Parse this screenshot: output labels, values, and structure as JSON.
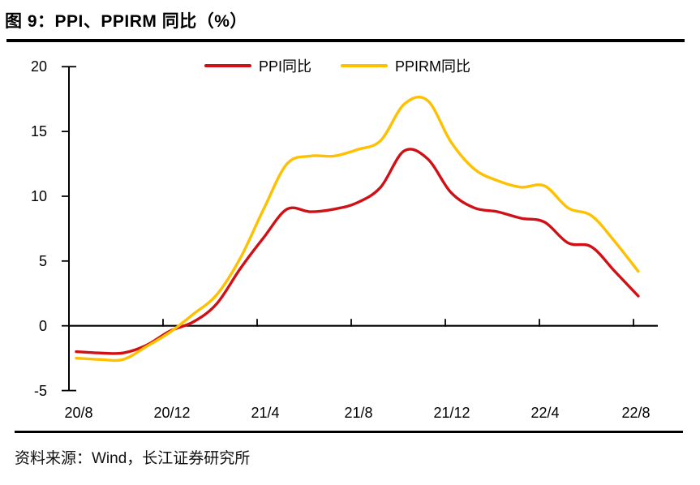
{
  "figure": {
    "title": "图 9：PPI、PPIRM 同比（%）",
    "source": "资料来源：Wind，长江证券研究所"
  },
  "chart_data": {
    "type": "line",
    "title": "图 9：PPI、PPIRM 同比（%）",
    "unit": "%",
    "smooth": true,
    "grid": false,
    "legend_position": "top",
    "x": [
      "2020/8",
      "2020/9",
      "2020/10",
      "2020/11",
      "2020/12",
      "2021/1",
      "2021/2",
      "2021/3",
      "2021/4",
      "2021/5",
      "2021/6",
      "2021/7",
      "2021/8",
      "2021/9",
      "2021/10",
      "2021/11",
      "2021/12",
      "2022/1",
      "2022/2",
      "2022/3",
      "2022/4",
      "2022/5",
      "2022/6",
      "2022/7",
      "2022/8"
    ],
    "series": [
      {
        "name": "PPI同比",
        "color": "#D01015",
        "values": [
          -2.0,
          -2.1,
          -2.1,
          -1.5,
          -0.4,
          0.3,
          1.7,
          4.4,
          6.8,
          9.0,
          8.8,
          9.0,
          9.5,
          10.7,
          13.5,
          12.9,
          10.3,
          9.1,
          8.8,
          8.3,
          8.0,
          6.4,
          6.1,
          4.2,
          2.3
        ]
      },
      {
        "name": "PPIRM同比",
        "color": "#FFC000",
        "values": [
          -2.5,
          -2.6,
          -2.6,
          -1.6,
          -0.5,
          0.9,
          2.4,
          5.2,
          9.0,
          12.5,
          13.1,
          13.1,
          13.6,
          14.3,
          17.1,
          17.4,
          14.2,
          12.1,
          11.2,
          10.7,
          10.8,
          9.1,
          8.5,
          6.5,
          4.2
        ]
      }
    ],
    "ylim": [
      -5,
      20
    ],
    "y_tick_labels": [
      "20",
      "15",
      "10",
      "5",
      "0",
      "-5"
    ],
    "x_tick_labels": [
      "20/8",
      "20/12",
      "21/4",
      "21/8",
      "21/12",
      "22/4",
      "22/8"
    ],
    "axis_color": "#000000"
  }
}
